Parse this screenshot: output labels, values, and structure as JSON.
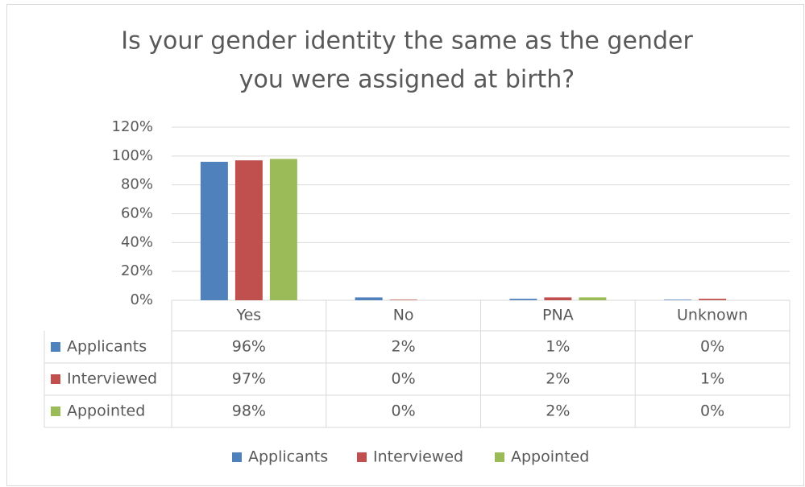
{
  "chart_data": {
    "type": "bar",
    "title": [
      "Is your gender identity the same as the gender",
      "you were assigned at birth?"
    ],
    "categories": [
      "Yes",
      "No",
      "PNA",
      "Unknown"
    ],
    "series": [
      {
        "name": "Applicants",
        "color": "#4f81bd",
        "values": [
          96,
          2,
          1,
          0.4
        ],
        "value_labels": [
          "96%",
          "2%",
          "1%",
          "0%"
        ]
      },
      {
        "name": "Interviewed",
        "color": "#c0504d",
        "values": [
          97,
          0.4,
          2,
          1
        ],
        "value_labels": [
          "97%",
          "0%",
          "2%",
          "1%"
        ]
      },
      {
        "name": "Appointed",
        "color": "#9bbb59",
        "values": [
          98,
          0,
          2,
          0
        ],
        "value_labels": [
          "98%",
          "0%",
          "2%",
          "0%"
        ]
      }
    ],
    "ylim": [
      0,
      120
    ],
    "yticks": [
      {
        "value": 0,
        "label": "0%"
      },
      {
        "value": 20,
        "label": "20%"
      },
      {
        "value": 40,
        "label": "40%"
      },
      {
        "value": 60,
        "label": "60%"
      },
      {
        "value": 80,
        "label": "80%"
      },
      {
        "value": 100,
        "label": "100%"
      },
      {
        "value": 120,
        "label": "120%"
      }
    ],
    "grid": true,
    "legend": "bottom"
  }
}
